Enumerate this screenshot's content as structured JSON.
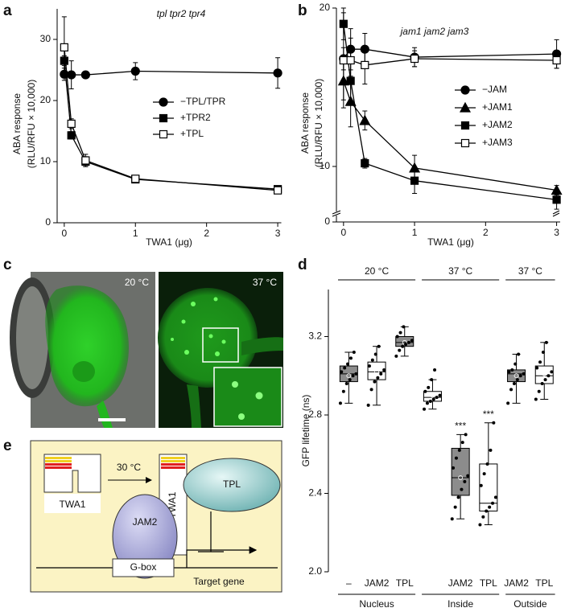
{
  "panel_labels": [
    "a",
    "b",
    "c",
    "d",
    "e"
  ],
  "micrograph": {
    "left_label": "20 °C",
    "right_label": "37 °C"
  },
  "diagram": {
    "left_protein": "TWA1",
    "arrow_label": "30 °C",
    "right_protein": "TWA1",
    "corepressor": "TPL",
    "factor": "JAM2",
    "element": "G-box",
    "gene": "Target gene"
  },
  "chart_data": [
    {
      "type": "line",
      "title": "tpl tpr2 tpr4",
      "xlabel": "TWA1 (μg)",
      "ylabel": [
        "ABA response",
        "(RLU/RFU × 10,000)"
      ],
      "x": [
        0,
        0.1,
        0.3,
        1,
        3
      ],
      "xlim": [
        -0.1,
        3.05
      ],
      "xticks": [
        0,
        1,
        2,
        3
      ],
      "ylim": [
        0,
        35
      ],
      "yticks": [
        0,
        10,
        20,
        30
      ],
      "series": [
        {
          "name": "−TPL/TPR",
          "color": "#000000",
          "marker": "circle",
          "values": [
            24.3,
            24.2,
            24.2,
            24.8,
            24.5
          ],
          "errors": [
            1.0,
            2.3,
            0.4,
            1.4,
            2.5
          ]
        },
        {
          "name": "+TPR2",
          "color": "#000000",
          "marker": "square",
          "values": [
            26.5,
            14.3,
            10.0,
            7.1,
            5.5
          ],
          "errors": [
            0.8,
            0.6,
            0.8,
            0.4,
            0.4
          ]
        },
        {
          "name": "+TPL",
          "color": "#000000",
          "marker": "open-square",
          "values": [
            28.7,
            16.2,
            10.2,
            7.2,
            5.3
          ],
          "errors": [
            5.0,
            0.8,
            1.0,
            0.3,
            0.3
          ]
        }
      ]
    },
    {
      "type": "line",
      "title": "jam1 jam2 jam3",
      "xlabel": "TWA1 (μg)",
      "ylabel": [
        "ABA response",
        "(RLU/RFU × 10,000)"
      ],
      "x": [
        0,
        0.1,
        0.3,
        1,
        3
      ],
      "xlim": [
        -0.1,
        3.05
      ],
      "xticks": [
        0,
        1,
        2,
        3
      ],
      "ylim": [
        0,
        20
      ],
      "yticks": [
        0,
        10,
        20
      ],
      "ybreak": [
        0,
        6.8
      ],
      "series": [
        {
          "name": "−JAM",
          "color": "#000000",
          "marker": "circle",
          "values": [
            16.8,
            17.4,
            17.4,
            16.9,
            17.1
          ],
          "errors": [
            0.7,
            1.3,
            1.0,
            0.6,
            0.9
          ]
        },
        {
          "name": "+JAM1",
          "color": "#000000",
          "marker": "triangle",
          "values": [
            15.4,
            14.1,
            12.9,
            9.9,
            8.5
          ],
          "errors": [
            1.2,
            1.6,
            0.6,
            0.8,
            0.3
          ]
        },
        {
          "name": "+JAM2",
          "color": "#000000",
          "marker": "square",
          "values": [
            19.0,
            15.4,
            10.2,
            9.1,
            7.9
          ],
          "errors": [
            1.0,
            1.5,
            0.3,
            0.8,
            0.6
          ]
        },
        {
          "name": "+JAM3",
          "color": "#000000",
          "marker": "open-square",
          "values": [
            16.7,
            16.7,
            16.4,
            16.8,
            16.7
          ],
          "errors": [
            3.0,
            1.4,
            1.2,
            0.5,
            0.5
          ]
        }
      ]
    },
    {
      "type": "box",
      "ylabel": "GFP lifetime (ns)",
      "categories": [
        "–",
        "JAM2",
        "TPL",
        null,
        "JAM2",
        "TPL",
        "JAM2",
        "TPL"
      ],
      "groups": [
        "Nucleus",
        "Nucleus",
        "Nucleus",
        "Inside",
        "Inside",
        "Inside",
        "Outside",
        "Outside"
      ],
      "temperatures": [
        "20 °C",
        "20 °C",
        "20 °C",
        "37 °C",
        "37 °C",
        "37 °C",
        "37 °C",
        "37 °C"
      ],
      "significance": [
        null,
        null,
        null,
        null,
        "***",
        "***",
        null,
        null
      ],
      "ylim": [
        2.0,
        3.44
      ],
      "yticks": [
        {
          "value": 2.0,
          "label": "2.0"
        },
        2.4,
        2.8,
        3.2
      ],
      "boxes": [
        {
          "color": "#8c8c8c",
          "low": 2.86,
          "q1": 2.97,
          "median": 3.01,
          "q3": 3.05,
          "high": 3.12,
          "mean": 3.0,
          "points": [
            2.86,
            2.92,
            2.96,
            2.98,
            3.0,
            3.01,
            3.02,
            3.04,
            3.06,
            3.09,
            3.12
          ]
        },
        {
          "color": "#ffffff",
          "low": 2.85,
          "q1": 2.98,
          "median": 3.02,
          "q3": 3.07,
          "high": 3.15,
          "mean": 3.02,
          "points": [
            2.85,
            2.93,
            2.97,
            2.99,
            3.01,
            3.03,
            3.05,
            3.08,
            3.11,
            3.15
          ]
        },
        {
          "color": "#8c8c8c",
          "low": 3.1,
          "q1": 3.15,
          "median": 3.17,
          "q3": 3.2,
          "high": 3.25,
          "mean": 3.17,
          "points": [
            3.1,
            3.13,
            3.15,
            3.16,
            3.17,
            3.18,
            3.2,
            3.22,
            3.25
          ]
        },
        {
          "color": "#ffffff",
          "low": 2.83,
          "q1": 2.87,
          "median": 2.89,
          "q3": 2.92,
          "high": 2.98,
          "mean": 2.9,
          "points": [
            2.83,
            2.86,
            2.87,
            2.88,
            2.89,
            2.9,
            2.92,
            2.94,
            2.98,
            3.03
          ]
        },
        {
          "color": "#8c8c8c",
          "low": 2.27,
          "q1": 2.39,
          "median": 2.48,
          "q3": 2.63,
          "high": 2.7,
          "mean": 2.48,
          "points": [
            2.27,
            2.33,
            2.38,
            2.42,
            2.46,
            2.49,
            2.53,
            2.58,
            2.62,
            2.66,
            2.7
          ]
        },
        {
          "color": "#ffffff",
          "low": 2.24,
          "q1": 2.31,
          "median": 2.35,
          "q3": 2.55,
          "high": 2.76,
          "mean": 2.39,
          "points": [
            2.24,
            2.28,
            2.31,
            2.33,
            2.35,
            2.38,
            2.44,
            2.5,
            2.55,
            2.62,
            2.76
          ]
        },
        {
          "color": "#8c8c8c",
          "low": 2.86,
          "q1": 2.97,
          "median": 3.01,
          "q3": 3.03,
          "high": 3.11,
          "mean": 3.0,
          "points": [
            2.86,
            2.93,
            2.96,
            2.98,
            3.0,
            3.01,
            3.02,
            3.03,
            3.06,
            3.11
          ]
        },
        {
          "color": "#ffffff",
          "low": 2.88,
          "q1": 2.96,
          "median": 3.0,
          "q3": 3.05,
          "high": 3.17,
          "mean": 3.01,
          "points": [
            2.88,
            2.92,
            2.96,
            2.98,
            3.0,
            3.02,
            3.04,
            3.07,
            3.12,
            3.17
          ]
        }
      ]
    }
  ]
}
